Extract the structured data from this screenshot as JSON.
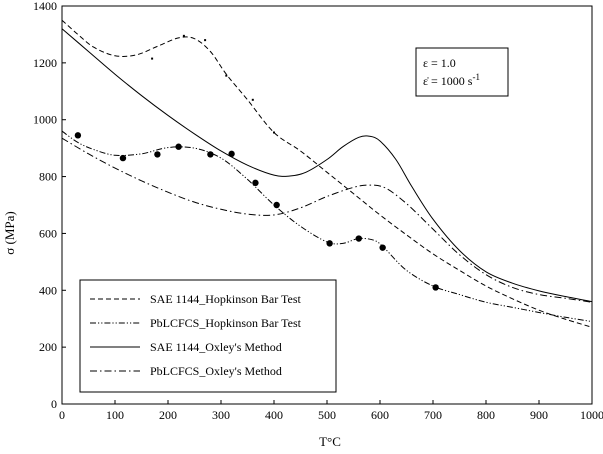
{
  "chart_data": {
    "type": "line",
    "xlabel": "T°C",
    "ylabel": "σ (MPa)",
    "xlim": [
      0,
      1000
    ],
    "ylim": [
      0,
      1400
    ],
    "x_ticks": [
      0,
      100,
      200,
      300,
      400,
      500,
      600,
      700,
      800,
      900,
      1000
    ],
    "y_ticks": [
      0,
      200,
      400,
      600,
      800,
      1000,
      1200,
      1400
    ],
    "grid": false,
    "annotation": {
      "line1": "ε = 1.0",
      "line2_prefix": "ε̇ = 1000 s",
      "line2_sup": "-1"
    },
    "legend_position": "bottom-left",
    "series": [
      {
        "name": "SAE 1144_Hopkinson Bar Test",
        "style": "dashed",
        "x": [
          0,
          30,
          60,
          100,
          140,
          180,
          220,
          250,
          280,
          310,
          350,
          400,
          450,
          500,
          550,
          600,
          650,
          700,
          750,
          800,
          850,
          900,
          950,
          1000
        ],
        "y": [
          1350,
          1300,
          1255,
          1225,
          1228,
          1258,
          1288,
          1285,
          1240,
          1160,
          1070,
          955,
          890,
          815,
          740,
          665,
          595,
          528,
          470,
          415,
          370,
          330,
          298,
          270
        ],
        "markers": {
          "x": [
            170,
            230,
            270,
            310,
            360,
            400
          ],
          "y": [
            1215,
            1295,
            1280,
            1155,
            1070,
            955
          ]
        }
      },
      {
        "name": "PbLCFCS_Hopkinson Bar Test",
        "style": "dash-dot-dot",
        "x": [
          0,
          30,
          60,
          100,
          150,
          200,
          250,
          300,
          350,
          400,
          450,
          500,
          530,
          560,
          590,
          610,
          650,
          700,
          750,
          800,
          850,
          900,
          950,
          1000
        ],
        "y": [
          960,
          920,
          895,
          875,
          880,
          902,
          900,
          865,
          790,
          700,
          625,
          570,
          565,
          582,
          575,
          545,
          470,
          415,
          385,
          358,
          340,
          322,
          305,
          290
        ],
        "markers": {
          "x": [
            30,
            115,
            180,
            220,
            280,
            320,
            365,
            405,
            505,
            560,
            605,
            705
          ],
          "y": [
            945,
            865,
            878,
            905,
            878,
            880,
            778,
            700,
            565,
            582,
            550,
            410
          ]
        }
      },
      {
        "name": "SAE 1144_Oxley's Method",
        "style": "solid",
        "x": [
          0,
          50,
          100,
          150,
          200,
          250,
          300,
          350,
          400,
          430,
          460,
          500,
          530,
          560,
          580,
          600,
          630,
          660,
          700,
          750,
          800,
          850,
          900,
          950,
          1000
        ],
        "y": [
          1320,
          1240,
          1160,
          1085,
          1015,
          950,
          890,
          840,
          805,
          802,
          815,
          860,
          905,
          938,
          942,
          925,
          860,
          765,
          650,
          540,
          465,
          425,
          398,
          378,
          360
        ],
        "markers": null
      },
      {
        "name": "PbLCFCS_Oxley's Method",
        "style": "dash-dot",
        "x": [
          0,
          50,
          100,
          150,
          200,
          250,
          300,
          350,
          400,
          450,
          500,
          550,
          580,
          610,
          650,
          700,
          750,
          800,
          850,
          900,
          950,
          1000
        ],
        "y": [
          935,
          880,
          830,
          785,
          745,
          710,
          685,
          668,
          665,
          690,
          730,
          762,
          770,
          760,
          705,
          615,
          525,
          455,
          410,
          385,
          372,
          358
        ],
        "markers": null
      }
    ]
  }
}
